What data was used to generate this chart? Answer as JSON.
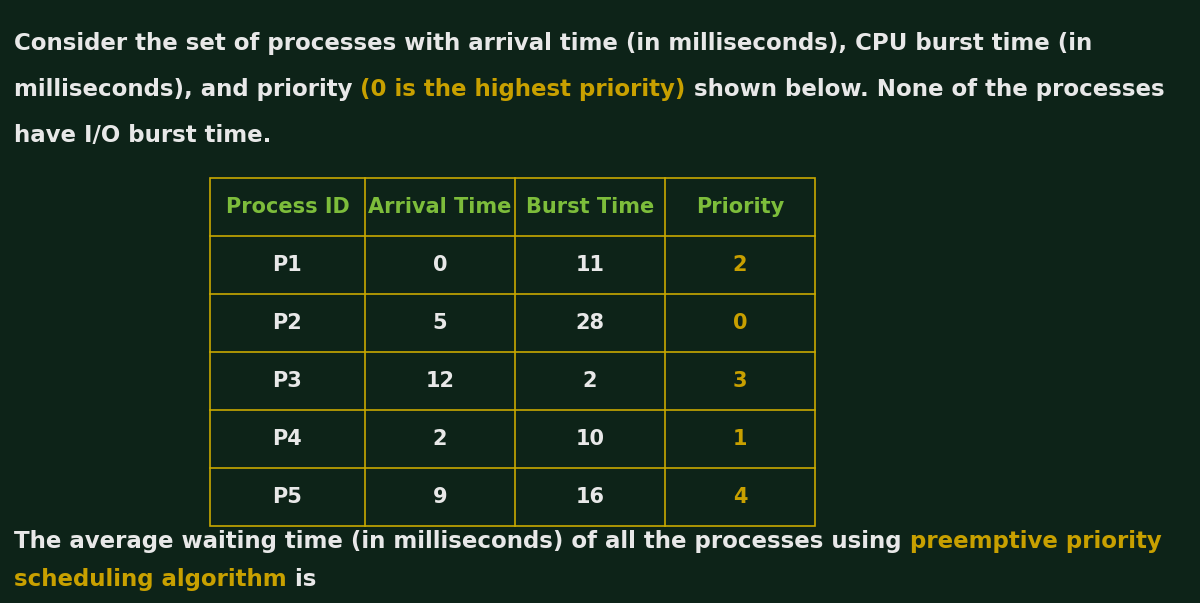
{
  "bg_color": "#0d2318",
  "text_color_white": "#e8e8e8",
  "text_color_yellow": "#c8a000",
  "text_color_green": "#7dbd3b",
  "table_border_color": "#c8a800",
  "table_header_color": "#7dbd3b",
  "priority_color": "#c8a000",
  "col_headers": [
    "Process ID",
    "Arrival Time",
    "Burst Time",
    "Priority"
  ],
  "rows": [
    [
      "P1",
      "0",
      "11",
      "2"
    ],
    [
      "P2",
      "5",
      "28",
      "0"
    ],
    [
      "P3",
      "12",
      "2",
      "3"
    ],
    [
      "P4",
      "2",
      "10",
      "1"
    ],
    [
      "P5",
      "9",
      "16",
      "4"
    ]
  ]
}
